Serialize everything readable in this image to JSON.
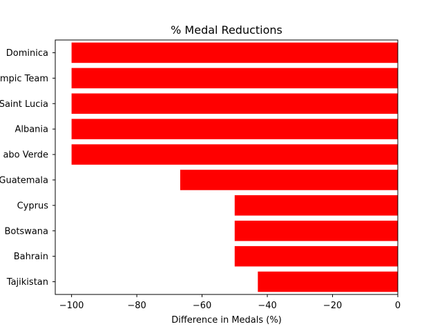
{
  "chart_data": {
    "type": "bar",
    "orientation": "horizontal",
    "title": "% Medal Reductions",
    "xlabel": "Difference in Medals (%)",
    "ylabel": "",
    "categories": [
      "Dominica",
      "mpic Team",
      "Saint Lucia",
      "Albania",
      "abo Verde",
      "Guatemala",
      "Cyprus",
      "Botswana",
      "Bahrain",
      "Tajikistan"
    ],
    "values": [
      -100,
      -100,
      -100,
      -100,
      -100,
      -66.7,
      -50,
      -50,
      -50,
      -42.9
    ],
    "xlim": [
      -105,
      0
    ],
    "xticks": [
      -100,
      -80,
      -60,
      -40,
      -20,
      0
    ],
    "xtick_labels": [
      "−100",
      "−80",
      "−60",
      "−40",
      "−20",
      "0"
    ],
    "bar_color": "#ff0000",
    "grid": false,
    "legend": "none"
  }
}
